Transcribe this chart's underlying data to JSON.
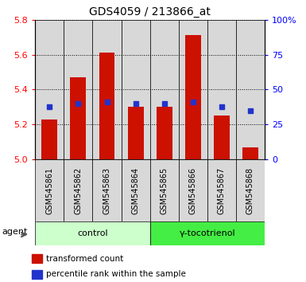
{
  "title": "GDS4059 / 213866_at",
  "samples": [
    "GSM545861",
    "GSM545862",
    "GSM545863",
    "GSM545864",
    "GSM545865",
    "GSM545866",
    "GSM545867",
    "GSM545868"
  ],
  "red_values": [
    5.23,
    5.47,
    5.61,
    5.3,
    5.3,
    5.71,
    5.25,
    5.07
  ],
  "blue_values": [
    5.3,
    5.32,
    5.33,
    5.32,
    5.32,
    5.33,
    5.3,
    5.28
  ],
  "ylim_left": [
    5.0,
    5.8
  ],
  "yticks_left": [
    5.0,
    5.2,
    5.4,
    5.6,
    5.8
  ],
  "yticks_right": [
    0,
    25,
    50,
    75,
    100
  ],
  "ytick_labels_right": [
    "0",
    "25",
    "50",
    "75",
    "100%"
  ],
  "bar_color": "#cc1100",
  "dot_color": "#2233cc",
  "bar_width": 0.55,
  "control_color": "#ccffcc",
  "tocotrienol_color": "#44ee44",
  "control_label": "control",
  "tocotrienol_label": "γ-tocotrienol",
  "agent_label": "agent",
  "legend_items": [
    {
      "color": "#cc1100",
      "label": "transformed count"
    },
    {
      "color": "#2233cc",
      "label": "percentile rank within the sample"
    }
  ],
  "title_fontsize": 10,
  "tick_fontsize": 8,
  "sample_fontsize": 7,
  "group_fontsize": 8,
  "legend_fontsize": 7.5
}
